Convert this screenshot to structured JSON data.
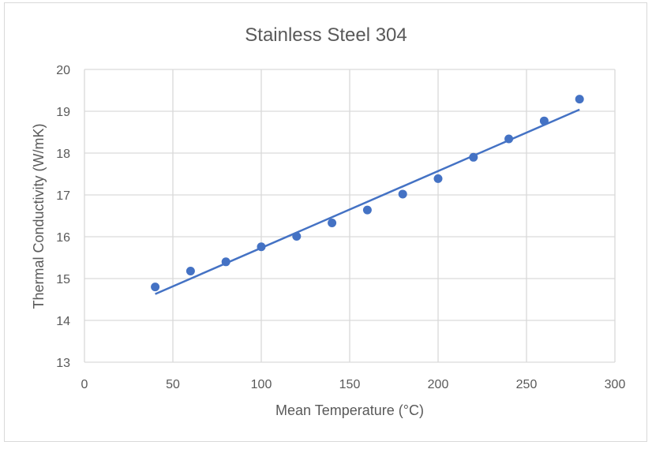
{
  "chart_data": {
    "type": "scatter",
    "title": "Stainless Steel 304",
    "xlabel": "Mean Temperature (°C)",
    "ylabel": "Thermal Conductivity (W/mK)",
    "xlim": [
      0,
      300
    ],
    "ylim": [
      13,
      20
    ],
    "xticks": [
      0,
      50,
      100,
      150,
      200,
      250,
      300
    ],
    "yticks": [
      13,
      14,
      15,
      16,
      17,
      18,
      19,
      20
    ],
    "grid": true,
    "legend": "none",
    "colors": {
      "marker": "#4472c4",
      "trendline": "#4472c4",
      "grid": "#d9d9d9",
      "text": "#595959"
    },
    "series": [
      {
        "points": [
          [
            40,
            14.8
          ],
          [
            60,
            15.18
          ],
          [
            80,
            15.4
          ],
          [
            100,
            15.76
          ],
          [
            120,
            16.01
          ],
          [
            140,
            16.33
          ],
          [
            160,
            16.64
          ],
          [
            180,
            17.02
          ],
          [
            200,
            17.39
          ],
          [
            220,
            17.9
          ],
          [
            240,
            18.34
          ],
          [
            260,
            18.77
          ],
          [
            280,
            19.29
          ]
        ]
      }
    ],
    "trendline": {
      "type": "linear",
      "x_range": [
        40,
        280
      ],
      "y_range": [
        14.63,
        19.04
      ]
    }
  }
}
